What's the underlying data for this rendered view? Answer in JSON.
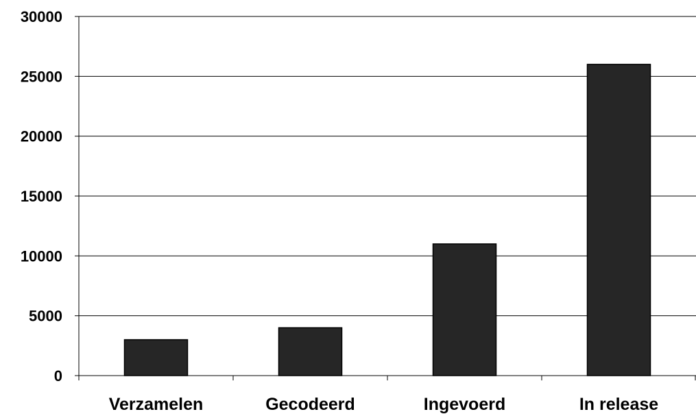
{
  "chart_data": {
    "type": "bar",
    "title": "",
    "xlabel": "",
    "ylabel": "",
    "categories": [
      "Verzamelen",
      "Gecodeerd",
      "Ingevoerd",
      "In release"
    ],
    "values": [
      3000,
      4000,
      11000,
      26000
    ],
    "ylim": [
      0,
      30000
    ],
    "yticks": [
      "0",
      "5000",
      "10000",
      "15000",
      "20000",
      "25000",
      "30000"
    ],
    "grid": true,
    "legend": "none",
    "colors": {
      "bar": "#262626",
      "bar_stroke": "#000000",
      "grid": "#000000",
      "axis": "#000000"
    }
  }
}
